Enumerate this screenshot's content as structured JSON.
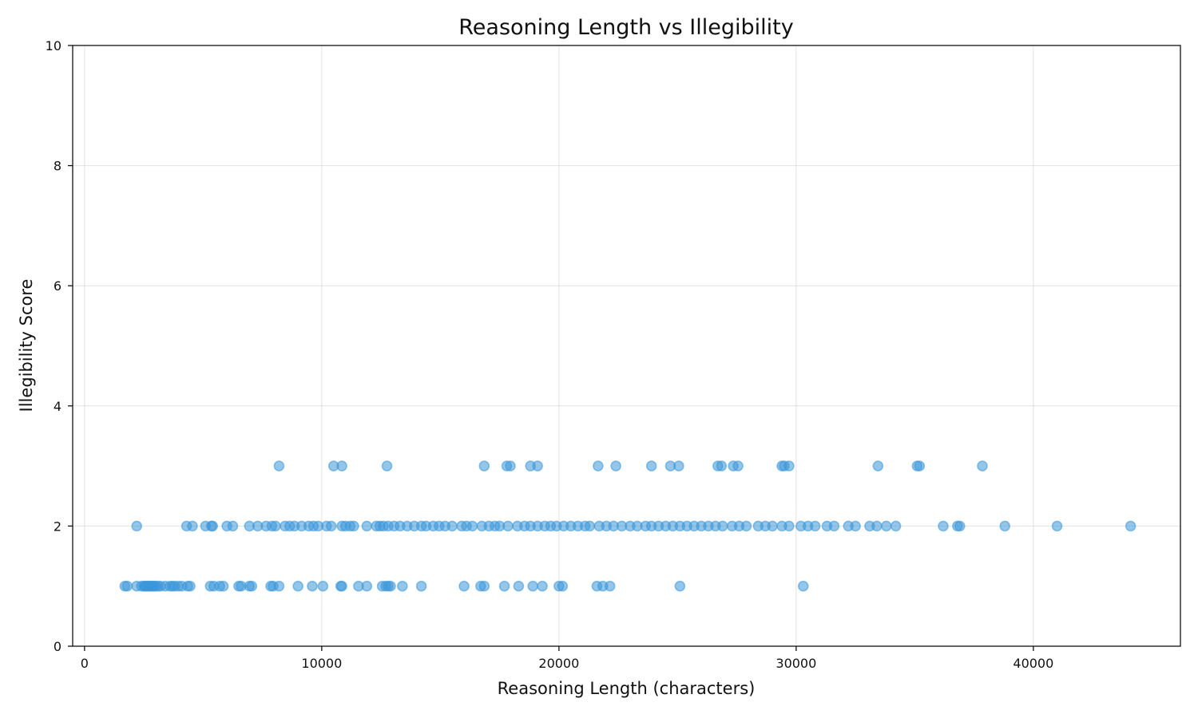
{
  "chart_data": {
    "type": "scatter",
    "title": "Reasoning Length vs Illegibility",
    "xlabel": "Reasoning Length (characters)",
    "ylabel": "Illegibility Score",
    "xlim": [
      -500,
      46200
    ],
    "ylim": [
      0,
      10
    ],
    "xticks": [
      0,
      10000,
      20000,
      30000,
      40000
    ],
    "yticks": [
      0,
      2,
      4,
      6,
      8,
      10
    ],
    "grid": true,
    "legend": null,
    "colors": {
      "point": "#3c98d9",
      "axis": "#111111"
    },
    "series": [
      {
        "points": [
          [
            1700,
            1
          ],
          [
            1800,
            1
          ],
          [
            2200,
            1
          ],
          [
            2400,
            1
          ],
          [
            2500,
            1
          ],
          [
            2550,
            1
          ],
          [
            2600,
            1
          ],
          [
            2650,
            1
          ],
          [
            2700,
            1
          ],
          [
            2750,
            1
          ],
          [
            2800,
            1
          ],
          [
            2850,
            1
          ],
          [
            2900,
            1
          ],
          [
            2950,
            1
          ],
          [
            3000,
            1
          ],
          [
            3100,
            1
          ],
          [
            3200,
            1
          ],
          [
            3400,
            1
          ],
          [
            3600,
            1
          ],
          [
            3700,
            1
          ],
          [
            3800,
            1
          ],
          [
            3950,
            1
          ],
          [
            4100,
            1
          ],
          [
            4350,
            1
          ],
          [
            4450,
            1
          ],
          [
            5300,
            1
          ],
          [
            5450,
            1
          ],
          [
            5700,
            1
          ],
          [
            5850,
            1
          ],
          [
            6500,
            1
          ],
          [
            6600,
            1
          ],
          [
            6950,
            1
          ],
          [
            7050,
            1
          ],
          [
            7850,
            1
          ],
          [
            7950,
            1
          ],
          [
            8200,
            1
          ],
          [
            9000,
            1
          ],
          [
            9600,
            1
          ],
          [
            10050,
            1
          ],
          [
            10800,
            1
          ],
          [
            10850,
            1
          ],
          [
            11550,
            1
          ],
          [
            11900,
            1
          ],
          [
            12550,
            1
          ],
          [
            12700,
            1
          ],
          [
            12800,
            1
          ],
          [
            12900,
            1
          ],
          [
            13400,
            1
          ],
          [
            14200,
            1
          ],
          [
            16000,
            1
          ],
          [
            16700,
            1
          ],
          [
            16850,
            1
          ],
          [
            17700,
            1
          ],
          [
            18300,
            1
          ],
          [
            18900,
            1
          ],
          [
            19300,
            1
          ],
          [
            20000,
            1
          ],
          [
            20150,
            1
          ],
          [
            21600,
            1
          ],
          [
            21850,
            1
          ],
          [
            22150,
            1
          ],
          [
            25100,
            1
          ],
          [
            30300,
            1
          ],
          [
            2200,
            2
          ],
          [
            4300,
            2
          ],
          [
            4550,
            2
          ],
          [
            5100,
            2
          ],
          [
            5350,
            2
          ],
          [
            5400,
            2
          ],
          [
            6000,
            2
          ],
          [
            6250,
            2
          ],
          [
            6950,
            2
          ],
          [
            7300,
            2
          ],
          [
            7650,
            2
          ],
          [
            7900,
            2
          ],
          [
            8050,
            2
          ],
          [
            8450,
            2
          ],
          [
            8650,
            2
          ],
          [
            8850,
            2
          ],
          [
            9150,
            2
          ],
          [
            9450,
            2
          ],
          [
            9650,
            2
          ],
          [
            9850,
            2
          ],
          [
            10200,
            2
          ],
          [
            10400,
            2
          ],
          [
            10850,
            2
          ],
          [
            11000,
            2
          ],
          [
            11200,
            2
          ],
          [
            11350,
            2
          ],
          [
            11900,
            2
          ],
          [
            12300,
            2
          ],
          [
            12450,
            2
          ],
          [
            12600,
            2
          ],
          [
            12800,
            2
          ],
          [
            13050,
            2
          ],
          [
            13300,
            2
          ],
          [
            13600,
            2
          ],
          [
            13900,
            2
          ],
          [
            14200,
            2
          ],
          [
            14400,
            2
          ],
          [
            14700,
            2
          ],
          [
            14950,
            2
          ],
          [
            15200,
            2
          ],
          [
            15500,
            2
          ],
          [
            15900,
            2
          ],
          [
            16100,
            2
          ],
          [
            16350,
            2
          ],
          [
            16750,
            2
          ],
          [
            17050,
            2
          ],
          [
            17300,
            2
          ],
          [
            17500,
            2
          ],
          [
            17850,
            2
          ],
          [
            18250,
            2
          ],
          [
            18550,
            2
          ],
          [
            18800,
            2
          ],
          [
            19100,
            2
          ],
          [
            19400,
            2
          ],
          [
            19650,
            2
          ],
          [
            19900,
            2
          ],
          [
            20200,
            2
          ],
          [
            20500,
            2
          ],
          [
            20800,
            2
          ],
          [
            21100,
            2
          ],
          [
            21300,
            2
          ],
          [
            21700,
            2
          ],
          [
            22000,
            2
          ],
          [
            22300,
            2
          ],
          [
            22650,
            2
          ],
          [
            23000,
            2
          ],
          [
            23300,
            2
          ],
          [
            23650,
            2
          ],
          [
            23900,
            2
          ],
          [
            24200,
            2
          ],
          [
            24500,
            2
          ],
          [
            24800,
            2
          ],
          [
            25100,
            2
          ],
          [
            25400,
            2
          ],
          [
            25700,
            2
          ],
          [
            26000,
            2
          ],
          [
            26300,
            2
          ],
          [
            26600,
            2
          ],
          [
            26900,
            2
          ],
          [
            27300,
            2
          ],
          [
            27600,
            2
          ],
          [
            27900,
            2
          ],
          [
            28400,
            2
          ],
          [
            28700,
            2
          ],
          [
            29000,
            2
          ],
          [
            29400,
            2
          ],
          [
            29700,
            2
          ],
          [
            30200,
            2
          ],
          [
            30500,
            2
          ],
          [
            30800,
            2
          ],
          [
            31300,
            2
          ],
          [
            31600,
            2
          ],
          [
            32200,
            2
          ],
          [
            32500,
            2
          ],
          [
            33100,
            2
          ],
          [
            33400,
            2
          ],
          [
            33800,
            2
          ],
          [
            34200,
            2
          ],
          [
            36200,
            2
          ],
          [
            36800,
            2
          ],
          [
            36900,
            2
          ],
          [
            38800,
            2
          ],
          [
            41000,
            2
          ],
          [
            44100,
            2
          ],
          [
            8200,
            3
          ],
          [
            10500,
            3
          ],
          [
            10850,
            3
          ],
          [
            12750,
            3
          ],
          [
            16850,
            3
          ],
          [
            17800,
            3
          ],
          [
            17950,
            3
          ],
          [
            18800,
            3
          ],
          [
            19100,
            3
          ],
          [
            21650,
            3
          ],
          [
            22400,
            3
          ],
          [
            23900,
            3
          ],
          [
            24700,
            3
          ],
          [
            25050,
            3
          ],
          [
            26700,
            3
          ],
          [
            26850,
            3
          ],
          [
            27350,
            3
          ],
          [
            27550,
            3
          ],
          [
            29400,
            3
          ],
          [
            29500,
            3
          ],
          [
            29700,
            3
          ],
          [
            33450,
            3
          ],
          [
            35100,
            3
          ],
          [
            35200,
            3
          ],
          [
            37850,
            3
          ]
        ]
      }
    ]
  }
}
